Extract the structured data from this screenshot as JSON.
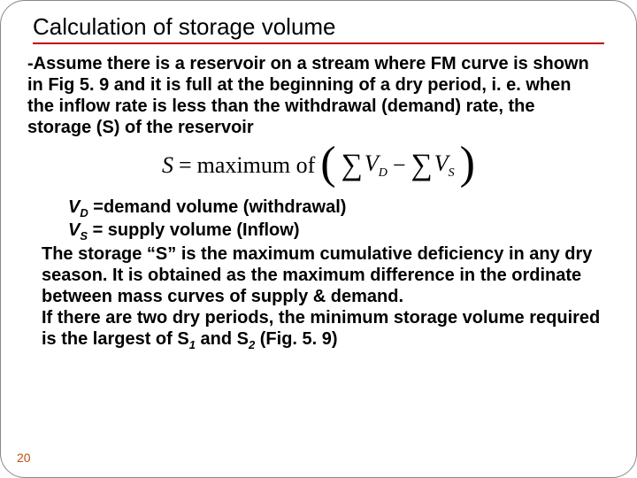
{
  "title": "Calculation of storage volume",
  "para1": "-Assume there is a reservoir on a stream where FM curve is shown in Fig 5. 9 and it is full at the beginning of a dry period, i. e. when the inflow rate is less than the withdrawal (demand) rate, the storage (S) of the reservoir",
  "formula": {
    "lhs_var": "S",
    "eq": " = ",
    "maxof": "maximum of ",
    "term1_var": "V",
    "term1_sub": "D",
    "minus": " − ",
    "term2_var": "V",
    "term2_sub": "S"
  },
  "defs": {
    "vd_lhs": "V",
    "vd_sub": "D",
    "vd_eq": "  =demand volume (withdrawal)",
    "vs_lhs": "V",
    "vs_sub": "S",
    "vs_eq": "  = supply volume (Inflow)"
  },
  "para2a": "The storage “S” is the maximum cumulative deficiency in any dry season.  It is obtained as the maximum difference in the ordinate between mass curves of supply & demand.",
  "para2b_pre": "If there are two dry periods, the minimum storage volume required is the largest of S",
  "para2b_sub1": "1",
  "para2b_mid": " and S",
  "para2b_sub2": "2",
  "para2b_post": " (Fig. 5. 9)",
  "pagenum": "20",
  "colors": {
    "title_underline": "#c00000",
    "pagenum_color": "#c05010",
    "text": "#000000",
    "bg": "#ffffff"
  }
}
